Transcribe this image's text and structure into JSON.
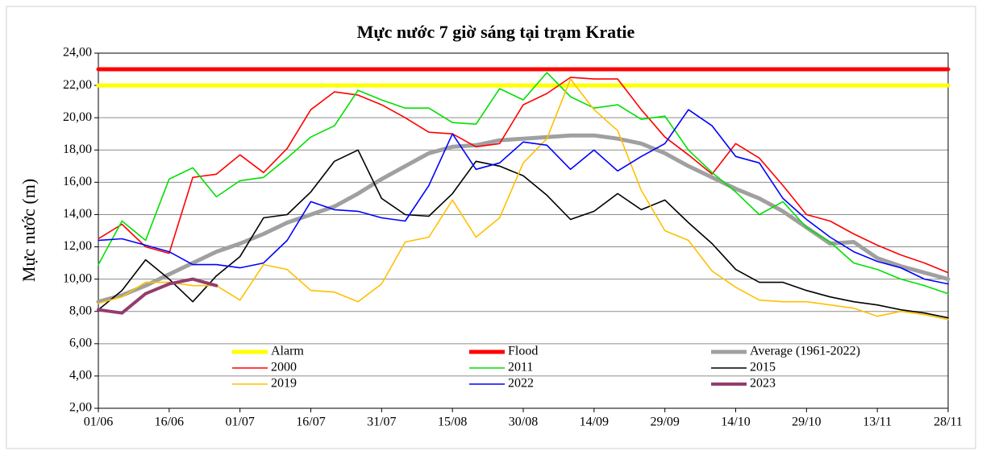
{
  "chart_data": {
    "type": "line",
    "title": "Mực nước 7 giờ sáng tại trạm Kratie",
    "y_label": "Mực nước (m)",
    "categories": [
      "01/06",
      null,
      null,
      "16/06",
      null,
      null,
      "01/07",
      null,
      null,
      "16/07",
      null,
      null,
      "31/07",
      null,
      null,
      "15/08",
      null,
      null,
      "30/08",
      null,
      null,
      "14/09",
      null,
      null,
      "29/09",
      null,
      null,
      "14/10",
      null,
      null,
      "29/10",
      null,
      null,
      "13/11",
      null,
      null,
      "28/11"
    ],
    "ylim": [
      2,
      24
    ],
    "yticks": [
      {
        "value": 2,
        "label": "2,00"
      },
      {
        "value": 4,
        "label": "4,00"
      },
      {
        "value": 6,
        "label": "6,00"
      },
      {
        "value": 8,
        "label": "8,00"
      },
      {
        "value": 10,
        "label": "10,00"
      },
      {
        "value": 12,
        "label": "12,00"
      },
      {
        "value": 14,
        "label": "14,00"
      },
      {
        "value": 16,
        "label": "16,00"
      },
      {
        "value": 18,
        "label": "18,00"
      },
      {
        "value": 20,
        "label": "20,00"
      },
      {
        "value": 22,
        "label": "22,00"
      },
      {
        "value": 24,
        "label": "24,00"
      }
    ],
    "grid": true,
    "legend": "bottom",
    "series": [
      {
        "name": "Alarm",
        "color": "#ffff00",
        "line_width": 5,
        "values": [
          22,
          22,
          22,
          22,
          22,
          22,
          22,
          22,
          22,
          22,
          22,
          22,
          22,
          22,
          22,
          22,
          22,
          22,
          22,
          22,
          22,
          22,
          22,
          22,
          22,
          22,
          22,
          22,
          22,
          22,
          22,
          22,
          22,
          22,
          22,
          22,
          22
        ]
      },
      {
        "name": "Flood",
        "color": "#ff0000",
        "line_width": 5,
        "values": [
          23,
          23,
          23,
          23,
          23,
          23,
          23,
          23,
          23,
          23,
          23,
          23,
          23,
          23,
          23,
          23,
          23,
          23,
          23,
          23,
          23,
          23,
          23,
          23,
          23,
          23,
          23,
          23,
          23,
          23,
          23,
          23,
          23,
          23,
          23,
          23,
          23
        ]
      },
      {
        "name": "Average (1961-2022)",
        "color": "#a0a0a0",
        "line_width": 5,
        "values": [
          8.6,
          9.0,
          9.6,
          10.3,
          11.0,
          11.7,
          12.2,
          12.8,
          13.5,
          14.0,
          14.5,
          15.3,
          16.2,
          17.0,
          17.8,
          18.2,
          18.3,
          18.6,
          18.7,
          18.8,
          18.9,
          18.9,
          18.7,
          18.4,
          17.8,
          17.0,
          16.3,
          15.6,
          15.0,
          14.2,
          13.2,
          12.2,
          12.3,
          11.3,
          10.8,
          10.4,
          10.0
        ]
      },
      {
        "name": "2000",
        "color": "#ff0000",
        "line_width": 1.6,
        "values": [
          12.5,
          13.4,
          12.0,
          11.6,
          16.3,
          16.5,
          17.7,
          16.6,
          18.1,
          20.5,
          21.6,
          21.4,
          20.8,
          20.0,
          19.1,
          19.0,
          18.2,
          18.4,
          20.8,
          21.5,
          22.5,
          22.4,
          22.4,
          20.5,
          18.8,
          17.7,
          16.5,
          18.4,
          17.5,
          15.8,
          14.0,
          13.6,
          12.8,
          12.1,
          11.5,
          11.0,
          10.4
        ]
      },
      {
        "name": "2011",
        "color": "#00e000",
        "line_width": 1.6,
        "values": [
          10.9,
          13.6,
          12.4,
          16.2,
          16.9,
          15.1,
          16.1,
          16.3,
          17.5,
          18.8,
          19.5,
          21.7,
          21.1,
          20.6,
          20.6,
          19.7,
          19.6,
          21.8,
          21.1,
          22.8,
          21.3,
          20.6,
          20.8,
          19.9,
          20.1,
          18.0,
          16.6,
          15.4,
          14.0,
          14.8,
          13.2,
          12.3,
          11.0,
          10.6,
          10.0,
          9.6,
          9.1
        ]
      },
      {
        "name": "2015",
        "color": "#000000",
        "line_width": 1.6,
        "values": [
          8.1,
          9.3,
          11.2,
          10.0,
          8.6,
          10.2,
          11.4,
          13.8,
          14.0,
          15.4,
          17.3,
          18.0,
          15.0,
          14.0,
          13.9,
          15.3,
          17.3,
          17.0,
          16.4,
          15.2,
          13.7,
          14.2,
          15.3,
          14.3,
          14.9,
          13.5,
          12.2,
          10.6,
          9.8,
          9.8,
          9.3,
          8.9,
          8.6,
          8.4,
          8.1,
          7.9,
          7.6
        ]
      },
      {
        "name": "2019",
        "color": "#ffc000",
        "line_width": 1.6,
        "values": [
          8.5,
          8.9,
          9.8,
          9.8,
          9.6,
          9.6,
          8.7,
          10.9,
          10.6,
          9.3,
          9.2,
          8.6,
          9.7,
          12.3,
          12.6,
          14.9,
          12.6,
          13.8,
          17.2,
          18.7,
          22.4,
          20.5,
          19.2,
          15.5,
          13.0,
          12.4,
          10.5,
          9.5,
          8.7,
          8.6,
          8.6,
          8.4,
          8.2,
          7.7,
          8.0,
          7.8,
          7.5
        ]
      },
      {
        "name": "2022",
        "color": "#0000ff",
        "line_width": 1.6,
        "values": [
          12.4,
          12.5,
          12.1,
          11.7,
          10.9,
          10.9,
          10.7,
          11.0,
          12.4,
          14.8,
          14.3,
          14.2,
          13.8,
          13.6,
          15.8,
          19.0,
          16.8,
          17.2,
          18.5,
          18.3,
          16.8,
          18.0,
          16.7,
          17.6,
          18.4,
          20.5,
          19.5,
          17.6,
          17.2,
          15.0,
          13.7,
          12.6,
          11.7,
          11.1,
          10.7,
          10.0,
          9.7
        ]
      },
      {
        "name": "2023",
        "color": "#943c6e",
        "line_width": 4,
        "values": [
          8.1,
          7.9,
          9.1,
          9.7,
          10.0,
          9.6,
          null,
          null,
          null,
          null,
          null,
          null,
          null,
          null,
          null,
          null,
          null,
          null,
          null,
          null,
          null,
          null,
          null,
          null,
          null,
          null,
          null,
          null,
          null,
          null,
          null,
          null,
          null,
          null,
          null,
          null,
          null
        ]
      }
    ]
  }
}
